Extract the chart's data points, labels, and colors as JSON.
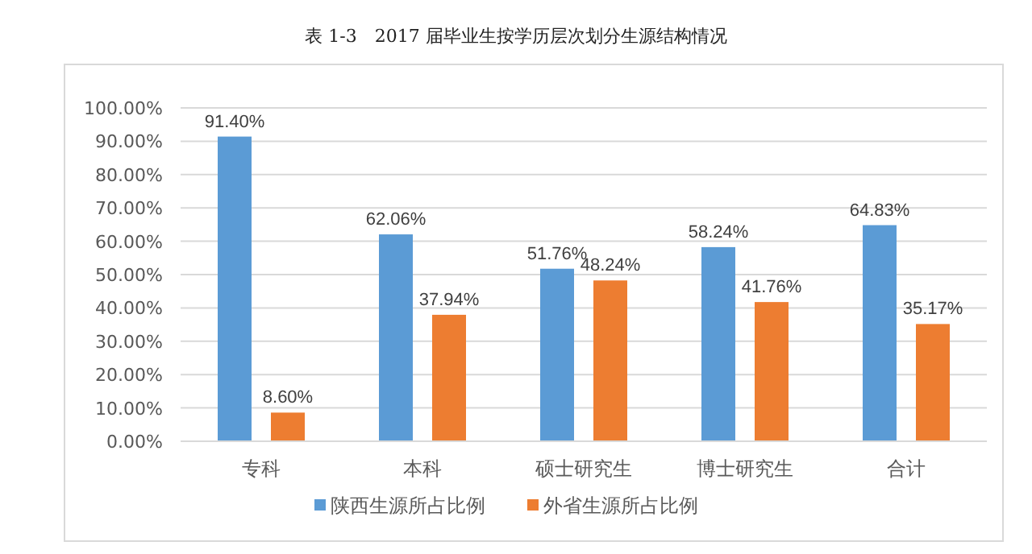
{
  "chart_data": {
    "type": "bar",
    "title": "表 1-3　2017 届毕业生按学历层次划分生源结构情况",
    "categories": [
      "专科",
      "本科",
      "硕士研究生",
      "博士研究生",
      "合计"
    ],
    "series": [
      {
        "name": "陕西生源所占比例",
        "color": "#5b9bd5",
        "values": [
          91.4,
          62.06,
          51.76,
          58.24,
          64.83
        ],
        "value_labels": [
          "91.40%",
          "62.06%",
          "51.76%",
          "58.24%",
          "64.83%"
        ]
      },
      {
        "name": "外省生源所占比例",
        "color": "#ed7d31",
        "values": [
          8.6,
          37.94,
          48.24,
          41.76,
          35.17
        ],
        "value_labels": [
          "8.60%",
          "37.94%",
          "48.24%",
          "41.76%",
          "35.17%"
        ]
      }
    ],
    "ylim": [
      0,
      100
    ],
    "yticks": [
      {
        "value": 0,
        "label": "0.00%"
      },
      {
        "value": 10,
        "label": "10.00%"
      },
      {
        "value": 20,
        "label": "20.00%"
      },
      {
        "value": 30,
        "label": "30.00%"
      },
      {
        "value": 40,
        "label": "40.00%"
      },
      {
        "value": 50,
        "label": "50.00%"
      },
      {
        "value": 60,
        "label": "60.00%"
      },
      {
        "value": 70,
        "label": "70.00%"
      },
      {
        "value": 80,
        "label": "80.00%"
      },
      {
        "value": 90,
        "label": "90.00%"
      },
      {
        "value": 100,
        "label": "100.00%"
      }
    ],
    "grid": "y",
    "legend": "bottom"
  }
}
